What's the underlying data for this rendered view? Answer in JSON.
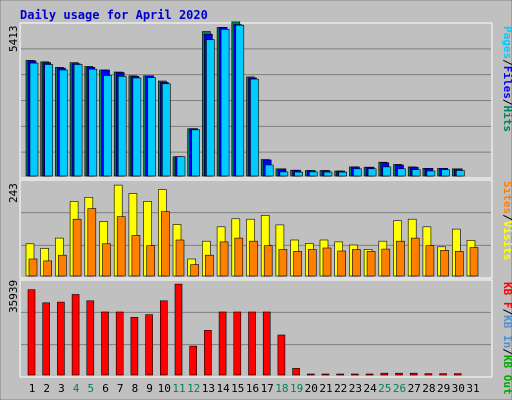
{
  "chart_data": [
    {
      "type": "bar",
      "title": "Daily usage for April 2020",
      "categories": [
        "1",
        "2",
        "3",
        "4",
        "5",
        "6",
        "7",
        "8",
        "9",
        "10",
        "11",
        "12",
        "13",
        "14",
        "15",
        "16",
        "17",
        "18",
        "19",
        "20",
        "21",
        "22",
        "23",
        "24",
        "25",
        "26",
        "27",
        "28",
        "29",
        "30",
        "31"
      ],
      "weekend_days": [
        "4",
        "5",
        "11",
        "12",
        "18",
        "19",
        "25",
        "26"
      ],
      "ymax_label": "5413",
      "ylim": [
        0,
        5413
      ],
      "grid": true,
      "legend_position": "right",
      "series": [
        {
          "name": "Hits",
          "color": "#00805c",
          "values": [
            4200,
            4150,
            3950,
            4120,
            3980,
            3850,
            3780,
            3640,
            3640,
            3450,
            700,
            1720,
            5250,
            5400,
            5600,
            3600,
            600,
            260,
            210,
            200,
            200,
            180,
            330,
            320,
            500,
            420,
            330,
            280,
            280,
            260,
            null
          ]
        },
        {
          "name": "Files",
          "color": "#0000ff",
          "values": [
            4180,
            4120,
            3920,
            4080,
            3950,
            3850,
            3760,
            3620,
            3640,
            3400,
            700,
            1720,
            5150,
            5400,
            5500,
            3560,
            580,
            260,
            210,
            200,
            200,
            180,
            330,
            320,
            480,
            400,
            320,
            280,
            280,
            260,
            null
          ]
        },
        {
          "name": "Pages",
          "color": "#00ccff",
          "values": [
            4100,
            4050,
            3850,
            4050,
            3880,
            3650,
            3620,
            3560,
            3570,
            3350,
            700,
            1680,
            4950,
            5330,
            5480,
            3520,
            400,
            150,
            140,
            150,
            140,
            140,
            260,
            260,
            330,
            260,
            230,
            180,
            230,
            200,
            null
          ]
        }
      ]
    },
    {
      "type": "bar",
      "ymax_label": "243",
      "ylim": [
        0,
        243
      ],
      "grid": true,
      "series": [
        {
          "name": "Visits",
          "color": "#ffff00",
          "values": [
            85,
            73,
            100,
            197,
            208,
            144,
            240,
            218,
            197,
            228,
            136,
            45,
            92,
            130,
            151,
            150,
            160,
            135,
            95,
            86,
            95,
            90,
            82,
            70,
            92,
            146,
            150,
            130,
            77,
            124,
            94
          ]
        },
        {
          "name": "Sites",
          "color": "#ff8000",
          "values": [
            45,
            40,
            55,
            150,
            178,
            85,
            157,
            107,
            80,
            170,
            95,
            30,
            55,
            90,
            100,
            92,
            80,
            70,
            65,
            70,
            74,
            66,
            70,
            65,
            71,
            92,
            100,
            80,
            68,
            65,
            75
          ]
        }
      ]
    },
    {
      "type": "bar",
      "ymax_label": "35939",
      "ylim": [
        0,
        35939
      ],
      "grid": true,
      "series": [
        {
          "name": "KB F",
          "color": "#ff0000",
          "values": [
            33700,
            28500,
            28800,
            31800,
            29300,
            24900,
            24900,
            22800,
            23800,
            29300,
            35900,
            11400,
            17600,
            24900,
            24900,
            24900,
            24900,
            15800,
            2600,
            400,
            400,
            400,
            400,
            400,
            700,
            700,
            700,
            500,
            500,
            500,
            null
          ]
        },
        {
          "name": "KB In",
          "color": "#4f8fd1",
          "values": [
            null,
            null,
            null,
            null,
            null,
            null,
            null,
            null,
            null,
            null,
            null,
            null,
            null,
            null,
            null,
            null,
            null,
            null,
            null,
            null,
            null,
            null,
            null,
            null,
            null,
            null,
            null,
            null,
            null,
            null,
            null
          ]
        },
        {
          "name": "KB Out",
          "color": "#00aa00",
          "values": [
            null,
            null,
            null,
            null,
            null,
            null,
            null,
            null,
            null,
            null,
            null,
            null,
            null,
            null,
            null,
            null,
            null,
            null,
            null,
            null,
            null,
            null,
            null,
            null,
            null,
            null,
            null,
            null,
            null,
            null,
            null
          ]
        }
      ]
    }
  ],
  "legend": {
    "top": [
      {
        "label": "Pages",
        "color": "#00ccff"
      },
      {
        "label": "/",
        "color": "#000000"
      },
      {
        "label": "Files",
        "color": "#0000ff"
      },
      {
        "label": "/",
        "color": "#000000"
      },
      {
        "label": "Hits",
        "color": "#00805c"
      }
    ],
    "middle": [
      {
        "label": "Sites",
        "color": "#ff8000"
      },
      {
        "label": "/",
        "color": "#000000"
      },
      {
        "label": "Visits",
        "color": "#ffff00"
      }
    ],
    "bottom": [
      {
        "label": "KB F",
        "color": "#ff0000"
      },
      {
        "label": "/",
        "color": "#000000"
      },
      {
        "label": "KB In",
        "color": "#4f8fd1"
      },
      {
        "label": "/",
        "color": "#000000"
      },
      {
        "label": "KB Out",
        "color": "#00aa00"
      }
    ]
  },
  "colors": {
    "frame_bg": "#c0c0c0",
    "plot_bg": "#c0c0c0",
    "grid": "#808080",
    "title": "#0000cc",
    "weekday_label": "#000000",
    "weekend_label": "#00805c"
  }
}
